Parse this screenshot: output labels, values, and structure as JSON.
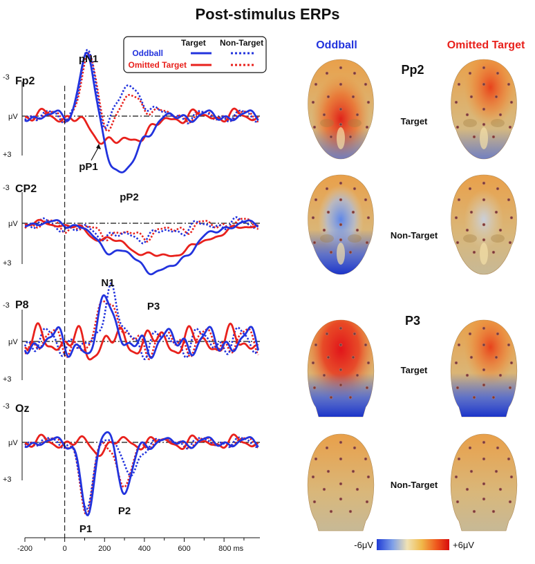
{
  "title": "Post-stimulus ERPs",
  "colors": {
    "oddball": "#2233dd",
    "omitted": "#e8211c",
    "black": "#111111"
  },
  "legend": {
    "col_target": "Target",
    "col_nontarget": "Non-Target",
    "row_oddball": "Oddball",
    "row_omitted": "Omitted Target"
  },
  "axis": {
    "unit_label": "μV",
    "neg_tick": "-3",
    "pos_tick": "+3",
    "x_ticks": [
      "-200",
      "0",
      "200",
      "400",
      "600",
      "800 ms"
    ]
  },
  "chart_data": {
    "type": "line",
    "xlim": [
      -200,
      980
    ],
    "ylim_note": "negative up",
    "channels": [
      {
        "name": "Fp2",
        "peaks": [
          "pN1",
          "pP1",
          "pP2"
        ]
      },
      {
        "name": "CP2",
        "peaks": [
          "P3"
        ]
      },
      {
        "name": "P8",
        "peaks": [
          "N1"
        ]
      },
      {
        "name": "Oz",
        "peaks": [
          "P1",
          "P2"
        ]
      }
    ],
    "series": [
      {
        "name": "Oddball",
        "condition": "Target"
      },
      {
        "name": "Oddball",
        "condition": "Non-Target"
      },
      {
        "name": "Omitted Target",
        "condition": "Target"
      },
      {
        "name": "Omitted Target",
        "condition": "Non-Target"
      }
    ]
  },
  "maps": {
    "col_oddball": "Oddball",
    "col_omitted": "Omitted Target",
    "section_pp2": "Pp2",
    "section_p3": "P3",
    "row_target": "Target",
    "row_nontarget": "Non-Target",
    "colorbar_min": "-6μV",
    "colorbar_max": "+6μV"
  }
}
